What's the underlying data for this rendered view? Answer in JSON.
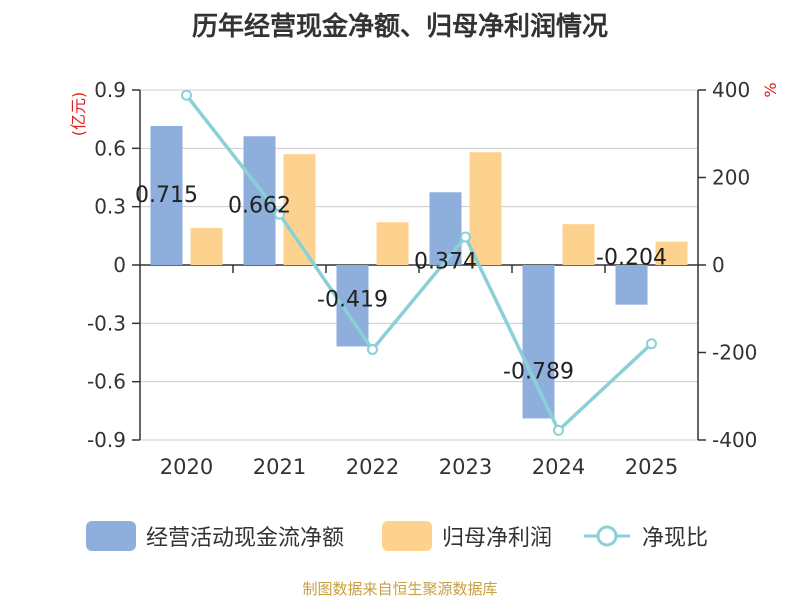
{
  "chart_data": {
    "type": "bar",
    "title": "历年经营现金净额、归母净利润情况",
    "categories": [
      "2020",
      "2021",
      "2022",
      "2023",
      "2024",
      "2025"
    ],
    "series": [
      {
        "name": "经营活动现金流净额",
        "type": "bar",
        "axis": "left",
        "color": "#8eaedc",
        "values": [
          0.715,
          0.662,
          -0.419,
          0.374,
          -0.789,
          -0.204
        ]
      },
      {
        "name": "归母净利润",
        "type": "bar",
        "axis": "left",
        "color": "#fdd28f",
        "values": [
          0.19,
          0.57,
          0.22,
          0.58,
          0.21,
          0.12
        ]
      },
      {
        "name": "净现比",
        "type": "line",
        "axis": "right",
        "color": "#8ad0d8",
        "values": [
          388,
          116,
          -193,
          64,
          -378,
          -180
        ]
      }
    ],
    "data_labels": [
      "0.715",
      "0.662",
      "-0.419",
      "0.374",
      "-0.789",
      "-0.204"
    ],
    "left_axis": {
      "label": "(亿元)",
      "min": -0.9,
      "max": 0.9,
      "ticks": [
        "0.9",
        "0.6",
        "0.3",
        "0",
        "-0.3",
        "-0.6",
        "-0.9"
      ],
      "tick_values": [
        0.9,
        0.6,
        0.3,
        0,
        -0.3,
        -0.6,
        -0.9
      ]
    },
    "right_axis": {
      "label": "%",
      "min": -400,
      "max": 400,
      "ticks": [
        "400",
        "200",
        "0",
        "-200",
        "-400"
      ],
      "tick_values": [
        400,
        200,
        0,
        -200,
        -400
      ]
    },
    "grid": true,
    "legend_position": "bottom"
  },
  "legend": [
    {
      "label": "经营活动现金流净额",
      "color": "#8eaedc",
      "kind": "bar"
    },
    {
      "label": "归母净利润",
      "color": "#fdd28f",
      "kind": "bar"
    },
    {
      "label": "净现比",
      "color": "#8ad0d8",
      "kind": "line"
    }
  ],
  "source": "制图数据来自恒生聚源数据库"
}
